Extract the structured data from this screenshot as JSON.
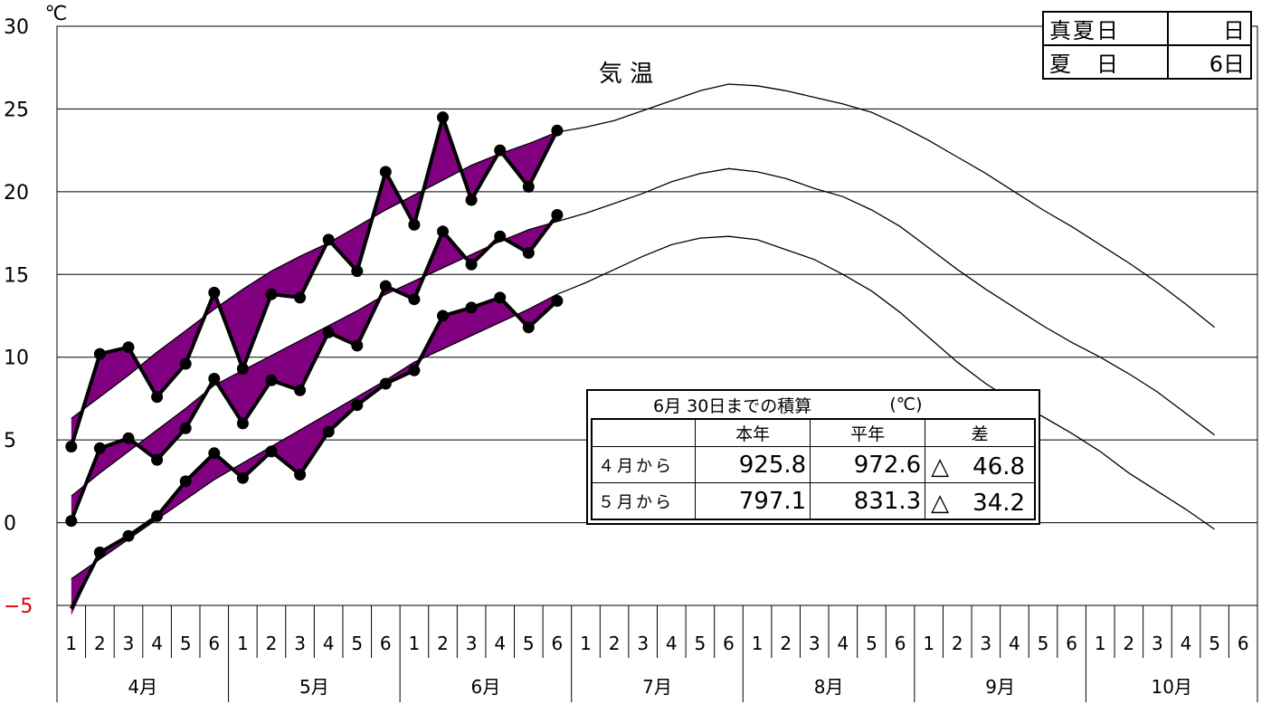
{
  "chart_data": {
    "type": "line",
    "title": "気 温",
    "ylabel": "℃",
    "ylim": [
      -5,
      30
    ],
    "y_ticks": [
      "30",
      "25",
      "20",
      "15",
      "10",
      "5",
      "0",
      "−5"
    ],
    "grid": true,
    "fill_color": "#800080",
    "negative_tick_color": "#e00000",
    "months": [
      "4月",
      "5月",
      "6月",
      "7月",
      "8月",
      "9月",
      "10月"
    ],
    "periods": [
      "1",
      "2",
      "3",
      "4",
      "5",
      "6"
    ],
    "normal_series": {
      "max": [
        6.3,
        7.6,
        8.9,
        10.3,
        11.6,
        12.9,
        14.1,
        15.2,
        16.1,
        16.9,
        17.9,
        18.9,
        19.8,
        20.7,
        21.6,
        22.3,
        22.9,
        23.6,
        23.9,
        24.3,
        24.9,
        25.5,
        26.1,
        26.5,
        26.4,
        26.1,
        25.7,
        25.3,
        24.8,
        24.0,
        23.1,
        22.1,
        21.1,
        20.0,
        18.9,
        17.9,
        16.8,
        15.7,
        14.5,
        13.2,
        11.8
      ],
      "mean": [
        1.6,
        3.0,
        4.3,
        5.6,
        6.9,
        8.3,
        9.2,
        10.1,
        11.0,
        11.9,
        12.8,
        13.8,
        14.6,
        15.4,
        16.2,
        17.0,
        17.7,
        18.2,
        18.7,
        19.3,
        19.9,
        20.6,
        21.1,
        21.4,
        21.2,
        20.8,
        20.2,
        19.7,
        18.9,
        17.9,
        16.6,
        15.3,
        14.1,
        13.0,
        11.9,
        10.9,
        10.0,
        9.0,
        7.9,
        6.6,
        5.3
      ],
      "min": [
        -3.4,
        -2.2,
        -1.0,
        0.2,
        1.4,
        2.6,
        3.6,
        4.6,
        5.6,
        6.6,
        7.6,
        8.6,
        9.7,
        10.5,
        11.3,
        12.1,
        12.9,
        13.8,
        14.5,
        15.3,
        16.1,
        16.8,
        17.2,
        17.3,
        17.1,
        16.5,
        15.9,
        15.0,
        14.0,
        12.7,
        11.2,
        9.7,
        8.4,
        7.3,
        6.4,
        5.4,
        4.3,
        3.0,
        1.9,
        0.8,
        -0.4
      ]
    },
    "series": [
      {
        "values": [
          4.6,
          10.2,
          10.6,
          7.6,
          9.6,
          13.9,
          9.3,
          13.8,
          13.6,
          17.1,
          15.2,
          21.2,
          18.0,
          24.5,
          19.5,
          22.5,
          20.3,
          23.7
        ]
      },
      {
        "values": [
          0.1,
          4.5,
          5.1,
          3.8,
          5.7,
          8.7,
          6.0,
          8.6,
          8.0,
          11.5,
          10.7,
          14.3,
          13.5,
          17.6,
          15.6,
          17.3,
          16.3,
          18.6
        ]
      },
      {
        "values": [
          -5.6,
          -1.8,
          -0.8,
          0.4,
          2.5,
          4.2,
          2.7,
          4.3,
          2.9,
          5.5,
          7.1,
          8.4,
          9.2,
          12.5,
          13.0,
          13.6,
          11.8,
          13.4
        ]
      }
    ]
  },
  "summer_days_box": {
    "rows": [
      {
        "label": "真夏日",
        "value": "日"
      },
      {
        "label": "夏　日",
        "value": "6日"
      }
    ]
  },
  "accumulation_box": {
    "caption": "6月 30日までの積算",
    "unit": "(℃)",
    "headers": [
      "",
      "本年",
      "平年",
      "差"
    ],
    "rows": [
      {
        "label": "４月から",
        "this_year": "925.8",
        "normal": "972.6",
        "diff": "△　46.8"
      },
      {
        "label": "５月から",
        "this_year": "797.1",
        "normal": "831.3",
        "diff": "△　34.2"
      }
    ]
  }
}
